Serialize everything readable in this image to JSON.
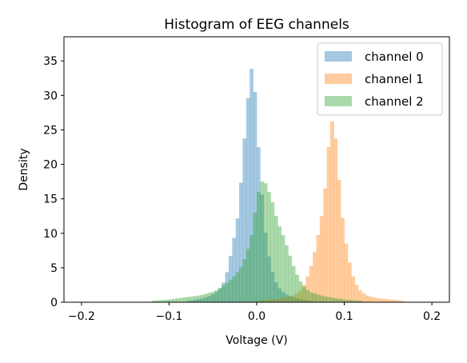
{
  "chart_data": {
    "type": "bar",
    "subtype": "overlapping-histogram",
    "title": "Histogram of EEG channels",
    "xlabel": "Voltage (V)",
    "ylabel": "Density",
    "xlim": [
      -0.22,
      0.22
    ],
    "ylim": [
      0,
      38.5
    ],
    "xticks": [
      -0.2,
      -0.1,
      0.0,
      0.1,
      0.2
    ],
    "xtick_labels": [
      "−0.2",
      "−0.1",
      "0.0",
      "0.1",
      "0.2"
    ],
    "yticks": [
      0,
      5,
      10,
      15,
      20,
      25,
      30,
      35
    ],
    "ytick_labels": [
      "0",
      "5",
      "10",
      "15",
      "20",
      "25",
      "30",
      "35"
    ],
    "grid": false,
    "legend_position": "top-right",
    "bin_range": [
      -0.2,
      0.2
    ],
    "bin_count": 100,
    "alpha": 0.4,
    "series": [
      {
        "name": "channel 0",
        "color": "#1f77b4",
        "bins": [
          [
            -0.08,
            0.2
          ],
          [
            -0.072,
            0.3
          ],
          [
            -0.064,
            0.5
          ],
          [
            -0.056,
            0.8
          ],
          [
            -0.052,
            1.0
          ],
          [
            -0.048,
            1.3
          ],
          [
            -0.044,
            1.7
          ],
          [
            -0.04,
            2.3
          ],
          [
            -0.036,
            3.4
          ],
          [
            -0.032,
            5.3
          ],
          [
            -0.028,
            8.1
          ],
          [
            -0.024,
            10.6
          ],
          [
            -0.02,
            13.7
          ],
          [
            -0.016,
            21.0
          ],
          [
            -0.012,
            26.5
          ],
          [
            -0.008,
            32.7
          ],
          [
            -0.004,
            35.0
          ],
          [
            0.0,
            26.0
          ],
          [
            0.004,
            19.0
          ],
          [
            0.008,
            12.2
          ],
          [
            0.012,
            8.0
          ],
          [
            0.016,
            5.3
          ],
          [
            0.02,
            3.5
          ],
          [
            0.024,
            2.3
          ],
          [
            0.028,
            1.7
          ],
          [
            0.032,
            1.3
          ],
          [
            0.036,
            1.0
          ],
          [
            0.04,
            0.8
          ],
          [
            0.048,
            0.5
          ],
          [
            0.056,
            0.3
          ],
          [
            0.064,
            0.2
          ]
        ]
      },
      {
        "name": "channel 1",
        "color": "#ff7f0e",
        "bins": [
          [
            0.0,
            0.2
          ],
          [
            0.008,
            0.3
          ],
          [
            0.016,
            0.4
          ],
          [
            0.024,
            0.5
          ],
          [
            0.032,
            0.7
          ],
          [
            0.04,
            0.9
          ],
          [
            0.044,
            1.1
          ],
          [
            0.048,
            1.5
          ],
          [
            0.052,
            2.0
          ],
          [
            0.056,
            3.0
          ],
          [
            0.06,
            4.5
          ],
          [
            0.064,
            6.0
          ],
          [
            0.068,
            8.5
          ],
          [
            0.072,
            11.0
          ],
          [
            0.076,
            14.0
          ],
          [
            0.08,
            19.0
          ],
          [
            0.084,
            26.0
          ],
          [
            0.088,
            26.5
          ],
          [
            0.092,
            21.0
          ],
          [
            0.096,
            14.5
          ],
          [
            0.1,
            10.0
          ],
          [
            0.104,
            7.0
          ],
          [
            0.108,
            4.5
          ],
          [
            0.112,
            3.0
          ],
          [
            0.116,
            2.0
          ],
          [
            0.12,
            1.5
          ],
          [
            0.124,
            1.1
          ],
          [
            0.128,
            0.9
          ],
          [
            0.136,
            0.6
          ],
          [
            0.144,
            0.5
          ],
          [
            0.152,
            0.4
          ],
          [
            0.16,
            0.3
          ],
          [
            0.168,
            0.2
          ]
        ]
      },
      {
        "name": "channel 2",
        "color": "#2ca02c",
        "bins": [
          [
            -0.12,
            0.2
          ],
          [
            -0.1,
            0.4
          ],
          [
            -0.088,
            0.6
          ],
          [
            -0.076,
            0.8
          ],
          [
            -0.064,
            1.0
          ],
          [
            -0.056,
            1.3
          ],
          [
            -0.048,
            1.6
          ],
          [
            -0.04,
            2.2
          ],
          [
            -0.032,
            3.0
          ],
          [
            -0.024,
            4.0
          ],
          [
            -0.016,
            5.5
          ],
          [
            -0.012,
            7.0
          ],
          [
            -0.008,
            8.5
          ],
          [
            -0.004,
            11.0
          ],
          [
            0.0,
            15.0
          ],
          [
            0.004,
            17.0
          ],
          [
            0.008,
            18.0
          ],
          [
            0.012,
            16.5
          ],
          [
            0.016,
            15.5
          ],
          [
            0.02,
            13.5
          ],
          [
            0.024,
            11.5
          ],
          [
            0.028,
            10.5
          ],
          [
            0.032,
            9.0
          ],
          [
            0.036,
            7.5
          ],
          [
            0.04,
            6.0
          ],
          [
            0.044,
            4.5
          ],
          [
            0.048,
            3.5
          ],
          [
            0.052,
            2.5
          ],
          [
            0.056,
            2.0
          ],
          [
            0.06,
            1.5
          ],
          [
            0.068,
            1.2
          ],
          [
            0.076,
            0.9
          ],
          [
            0.088,
            0.6
          ],
          [
            0.1,
            0.4
          ],
          [
            0.12,
            0.2
          ]
        ]
      }
    ]
  }
}
